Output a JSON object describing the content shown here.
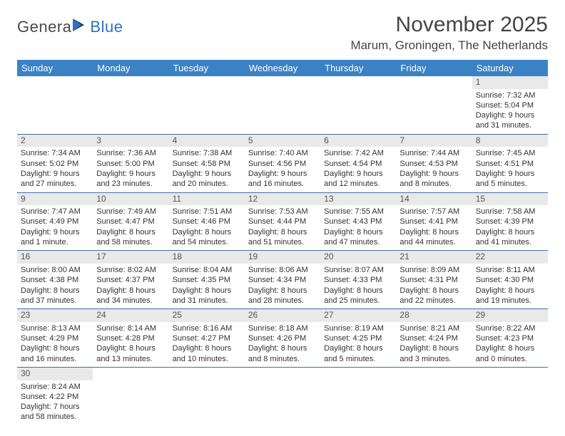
{
  "logo": {
    "text1": "Genera",
    "text2": "Blue"
  },
  "title": "November 2025",
  "location": "Marum, Groningen, The Netherlands",
  "weekdays": [
    "Sunday",
    "Monday",
    "Tuesday",
    "Wednesday",
    "Thursday",
    "Friday",
    "Saturday"
  ],
  "colors": {
    "header_bg": "#3b82c4",
    "header_text": "#ffffff",
    "daynum_bg": "#e9e9e9",
    "row_border": "#3b6fa8",
    "brand_blue": "#2e72b8"
  },
  "weeks": [
    [
      null,
      null,
      null,
      null,
      null,
      null,
      {
        "n": "1",
        "sunrise": "Sunrise: 7:32 AM",
        "sunset": "Sunset: 5:04 PM",
        "day1": "Daylight: 9 hours",
        "day2": "and 31 minutes."
      }
    ],
    [
      {
        "n": "2",
        "sunrise": "Sunrise: 7:34 AM",
        "sunset": "Sunset: 5:02 PM",
        "day1": "Daylight: 9 hours",
        "day2": "and 27 minutes."
      },
      {
        "n": "3",
        "sunrise": "Sunrise: 7:36 AM",
        "sunset": "Sunset: 5:00 PM",
        "day1": "Daylight: 9 hours",
        "day2": "and 23 minutes."
      },
      {
        "n": "4",
        "sunrise": "Sunrise: 7:38 AM",
        "sunset": "Sunset: 4:58 PM",
        "day1": "Daylight: 9 hours",
        "day2": "and 20 minutes."
      },
      {
        "n": "5",
        "sunrise": "Sunrise: 7:40 AM",
        "sunset": "Sunset: 4:56 PM",
        "day1": "Daylight: 9 hours",
        "day2": "and 16 minutes."
      },
      {
        "n": "6",
        "sunrise": "Sunrise: 7:42 AM",
        "sunset": "Sunset: 4:54 PM",
        "day1": "Daylight: 9 hours",
        "day2": "and 12 minutes."
      },
      {
        "n": "7",
        "sunrise": "Sunrise: 7:44 AM",
        "sunset": "Sunset: 4:53 PM",
        "day1": "Daylight: 9 hours",
        "day2": "and 8 minutes."
      },
      {
        "n": "8",
        "sunrise": "Sunrise: 7:45 AM",
        "sunset": "Sunset: 4:51 PM",
        "day1": "Daylight: 9 hours",
        "day2": "and 5 minutes."
      }
    ],
    [
      {
        "n": "9",
        "sunrise": "Sunrise: 7:47 AM",
        "sunset": "Sunset: 4:49 PM",
        "day1": "Daylight: 9 hours",
        "day2": "and 1 minute."
      },
      {
        "n": "10",
        "sunrise": "Sunrise: 7:49 AM",
        "sunset": "Sunset: 4:47 PM",
        "day1": "Daylight: 8 hours",
        "day2": "and 58 minutes."
      },
      {
        "n": "11",
        "sunrise": "Sunrise: 7:51 AM",
        "sunset": "Sunset: 4:46 PM",
        "day1": "Daylight: 8 hours",
        "day2": "and 54 minutes."
      },
      {
        "n": "12",
        "sunrise": "Sunrise: 7:53 AM",
        "sunset": "Sunset: 4:44 PM",
        "day1": "Daylight: 8 hours",
        "day2": "and 51 minutes."
      },
      {
        "n": "13",
        "sunrise": "Sunrise: 7:55 AM",
        "sunset": "Sunset: 4:43 PM",
        "day1": "Daylight: 8 hours",
        "day2": "and 47 minutes."
      },
      {
        "n": "14",
        "sunrise": "Sunrise: 7:57 AM",
        "sunset": "Sunset: 4:41 PM",
        "day1": "Daylight: 8 hours",
        "day2": "and 44 minutes."
      },
      {
        "n": "15",
        "sunrise": "Sunrise: 7:58 AM",
        "sunset": "Sunset: 4:39 PM",
        "day1": "Daylight: 8 hours",
        "day2": "and 41 minutes."
      }
    ],
    [
      {
        "n": "16",
        "sunrise": "Sunrise: 8:00 AM",
        "sunset": "Sunset: 4:38 PM",
        "day1": "Daylight: 8 hours",
        "day2": "and 37 minutes."
      },
      {
        "n": "17",
        "sunrise": "Sunrise: 8:02 AM",
        "sunset": "Sunset: 4:37 PM",
        "day1": "Daylight: 8 hours",
        "day2": "and 34 minutes."
      },
      {
        "n": "18",
        "sunrise": "Sunrise: 8:04 AM",
        "sunset": "Sunset: 4:35 PM",
        "day1": "Daylight: 8 hours",
        "day2": "and 31 minutes."
      },
      {
        "n": "19",
        "sunrise": "Sunrise: 8:06 AM",
        "sunset": "Sunset: 4:34 PM",
        "day1": "Daylight: 8 hours",
        "day2": "and 28 minutes."
      },
      {
        "n": "20",
        "sunrise": "Sunrise: 8:07 AM",
        "sunset": "Sunset: 4:33 PM",
        "day1": "Daylight: 8 hours",
        "day2": "and 25 minutes."
      },
      {
        "n": "21",
        "sunrise": "Sunrise: 8:09 AM",
        "sunset": "Sunset: 4:31 PM",
        "day1": "Daylight: 8 hours",
        "day2": "and 22 minutes."
      },
      {
        "n": "22",
        "sunrise": "Sunrise: 8:11 AM",
        "sunset": "Sunset: 4:30 PM",
        "day1": "Daylight: 8 hours",
        "day2": "and 19 minutes."
      }
    ],
    [
      {
        "n": "23",
        "sunrise": "Sunrise: 8:13 AM",
        "sunset": "Sunset: 4:29 PM",
        "day1": "Daylight: 8 hours",
        "day2": "and 16 minutes."
      },
      {
        "n": "24",
        "sunrise": "Sunrise: 8:14 AM",
        "sunset": "Sunset: 4:28 PM",
        "day1": "Daylight: 8 hours",
        "day2": "and 13 minutes."
      },
      {
        "n": "25",
        "sunrise": "Sunrise: 8:16 AM",
        "sunset": "Sunset: 4:27 PM",
        "day1": "Daylight: 8 hours",
        "day2": "and 10 minutes."
      },
      {
        "n": "26",
        "sunrise": "Sunrise: 8:18 AM",
        "sunset": "Sunset: 4:26 PM",
        "day1": "Daylight: 8 hours",
        "day2": "and 8 minutes."
      },
      {
        "n": "27",
        "sunrise": "Sunrise: 8:19 AM",
        "sunset": "Sunset: 4:25 PM",
        "day1": "Daylight: 8 hours",
        "day2": "and 5 minutes."
      },
      {
        "n": "28",
        "sunrise": "Sunrise: 8:21 AM",
        "sunset": "Sunset: 4:24 PM",
        "day1": "Daylight: 8 hours",
        "day2": "and 3 minutes."
      },
      {
        "n": "29",
        "sunrise": "Sunrise: 8:22 AM",
        "sunset": "Sunset: 4:23 PM",
        "day1": "Daylight: 8 hours",
        "day2": "and 0 minutes."
      }
    ],
    [
      {
        "n": "30",
        "sunrise": "Sunrise: 8:24 AM",
        "sunset": "Sunset: 4:22 PM",
        "day1": "Daylight: 7 hours",
        "day2": "and 58 minutes."
      },
      null,
      null,
      null,
      null,
      null,
      null
    ]
  ]
}
